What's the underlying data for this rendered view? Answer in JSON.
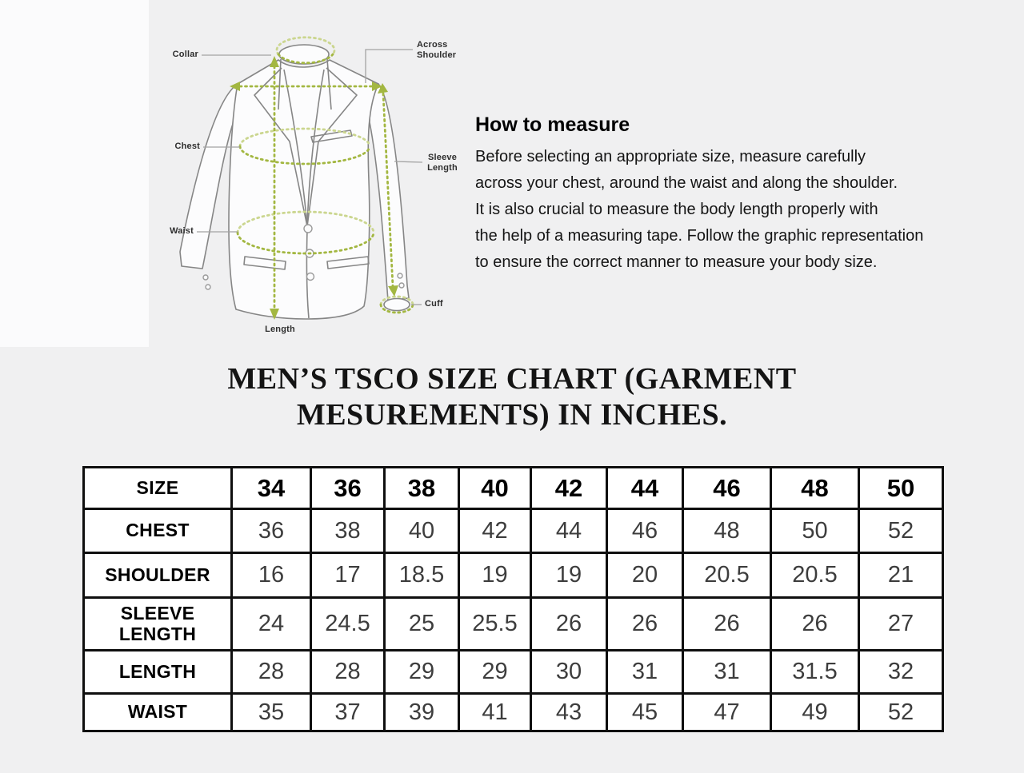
{
  "diagram": {
    "labels": {
      "collar": "Collar",
      "chest": "Chest",
      "waist": "Waist",
      "length": "Length",
      "across_shoulder_line1": "Across",
      "across_shoulder_line2": "Shoulder",
      "sleeve_length_line1": "Sleeve",
      "sleeve_length_line2": "Length",
      "cuff": "Cuff"
    },
    "colors": {
      "measure_green": "#a3b741",
      "measure_green_light": "#cbd68f",
      "outline_gray": "#868686",
      "callout_gray": "#a3a3a3"
    }
  },
  "how_to_measure": {
    "heading": "How to measure",
    "lines": [
      "Before selecting an appropriate size, measure carefully",
      "across your chest, around the waist and along the shoulder.",
      "It is also crucial to measure the body length properly with",
      "the help of a measuring tape. Follow the graphic representation",
      "to ensure the correct manner to measure your body size."
    ]
  },
  "title": {
    "line1": "MEN’S TSCO SIZE CHART (GARMENT",
    "line2": "MESUREMENTS) IN INCHES."
  },
  "size_table": {
    "header_label": "SIZE",
    "sizes": [
      "34",
      "36",
      "38",
      "40",
      "42",
      "44",
      "46",
      "48",
      "50"
    ],
    "rows": [
      {
        "label": "CHEST",
        "values": [
          "36",
          "38",
          "40",
          "42",
          "44",
          "46",
          "48",
          "50",
          "52"
        ]
      },
      {
        "label": "SHOULDER",
        "values": [
          "16",
          "17",
          "18.5",
          "19",
          "19",
          "20",
          "20.5",
          "20.5",
          "21"
        ]
      },
      {
        "label": "SLEEVE LENGTH",
        "values": [
          "24",
          "24.5",
          "25",
          "25.5",
          "26",
          "26",
          "26",
          "26",
          "27"
        ]
      },
      {
        "label": "LENGTH",
        "values": [
          "28",
          "28",
          "29",
          "29",
          "30",
          "31",
          "31",
          "31.5",
          "32"
        ]
      },
      {
        "label": "WAIST",
        "values": [
          "35",
          "37",
          "39",
          "41",
          "43",
          "45",
          "47",
          "49",
          "52"
        ]
      }
    ]
  }
}
